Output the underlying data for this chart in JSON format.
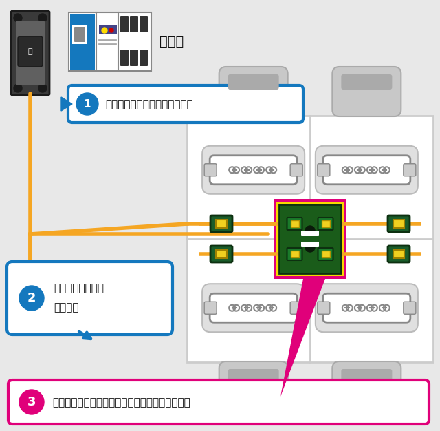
{
  "bg_color": "#e8e8e8",
  "panel_label": "分電盤",
  "step1_text": "空きブレーカーに電気線を接続",
  "step2_line1": "底上げ床を通して",
  "step2_line2": "配線作業",
  "step3_text": "ジョイントボックスとコンセントを設置して完了",
  "wire_color": "#f5a623",
  "pink_color": "#e0007a",
  "blue_color": "#1478be",
  "dark_green": "#1a5c1a",
  "table_bg": "#ffffff",
  "table_border": "#cccccc",
  "chair_color": "#c8c8c8",
  "tap_color": "#f0f0f0",
  "tap_border": "#888888",
  "plug_green": "#1a5c2a",
  "plug_yellow": "#f0d020",
  "joint_yellow_bg": "#f5d800",
  "joint_pink_border": "#e0007a",
  "joint_green": "#1a5c1a",
  "breaker_dark": "#3a3a3a",
  "breaker_mid": "#555555",
  "panel_blue": "#1478be"
}
